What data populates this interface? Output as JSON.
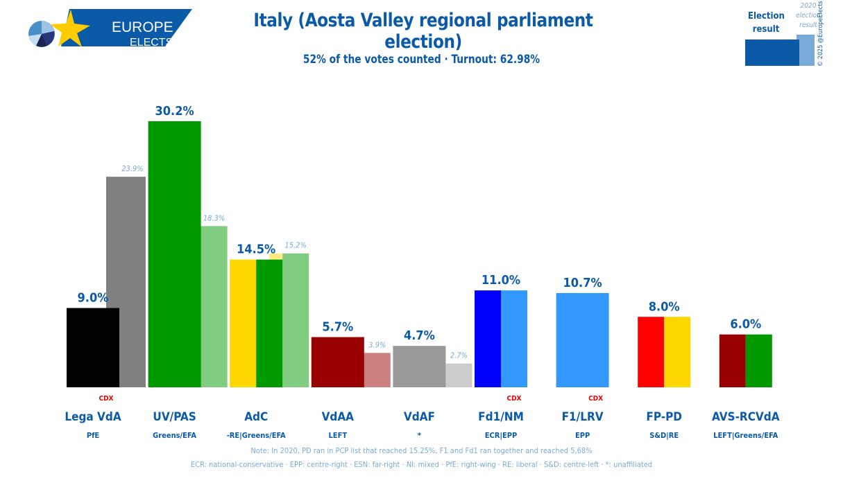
{
  "logo": {
    "line1": "EUROPE",
    "line2": "ELECTS"
  },
  "header": {
    "title": "Italy (Aosta Valley regional parliament election)",
    "subtitle": "52% of the votes counted · Turnout: 62.98%"
  },
  "legend": {
    "main_label_1": "Election",
    "main_label_2": "result",
    "prev_label_1": "2020",
    "prev_label_2": "election",
    "prev_label_3": "result",
    "copyright": "© 2025 @EuropeElects",
    "main_color": "#0a5aa8",
    "prev_color": "#7aabd8"
  },
  "notes": {
    "line1": "Note: In 2020, PD ran in PCP list that reached 15.25%, F1 and Fd1 ran together and reached 5,68%",
    "line2": "ECR: national-conservative · EPP: centre-right · ESN: far-right · NI: mixed · PfE: right-wing · RE: liberal · S&D: centre-left · *: unaffiliated"
  },
  "chart_data": {
    "type": "bar",
    "title": "Italy (Aosta Valley regional parliament election)",
    "ylim": [
      0,
      30.2
    ],
    "grid": false,
    "categories": [
      "Lega VdA",
      "UV/PAS",
      "AdC",
      "VdAA",
      "VdAF",
      "Fd1/NM",
      "F1/LRV",
      "FP-PD",
      "AVS-RCVdA"
    ],
    "series": [
      {
        "name": "Election result",
        "values": [
          9.0,
          30.2,
          14.5,
          5.7,
          4.7,
          11.0,
          10.7,
          8.0,
          6.0
        ]
      },
      {
        "name": "2020 election result",
        "values": [
          23.9,
          18.3,
          15.2,
          3.9,
          2.7,
          null,
          null,
          null,
          null
        ]
      }
    ],
    "parties": [
      {
        "name": "Lega VdA",
        "group": "PfE",
        "tag": "CDX",
        "value": 9.0,
        "value_label": "9.0%",
        "prev": 23.9,
        "prev_label": "23.9%",
        "colors": [
          "#000000"
        ],
        "prev_colors": [
          "#808080"
        ]
      },
      {
        "name": "UV/PAS",
        "group": "Greens/EFA",
        "tag": "",
        "value": 30.2,
        "value_label": "30.2%",
        "prev": 18.3,
        "prev_label": "18.3%",
        "colors": [
          "#009900"
        ],
        "prev_colors": [
          "#80cc80"
        ]
      },
      {
        "name": "AdC",
        "group": "-RE|Greens/EFA",
        "tag": "",
        "value": 14.5,
        "value_label": "14.5%",
        "prev": 15.2,
        "prev_label": "15.2%",
        "colors": [
          "#ffd700",
          "#009900"
        ],
        "prev_colors": [
          "#ffeb80",
          "#80cc80"
        ]
      },
      {
        "name": "VdAA",
        "group": "LEFT",
        "tag": "",
        "value": 5.7,
        "value_label": "5.7%",
        "prev": 3.9,
        "prev_label": "3.9%",
        "colors": [
          "#990000"
        ],
        "prev_colors": [
          "#cc8080"
        ]
      },
      {
        "name": "VdAF",
        "group": "*",
        "tag": "",
        "value": 4.7,
        "value_label": "4.7%",
        "prev": 2.7,
        "prev_label": "2.7%",
        "colors": [
          "#999999"
        ],
        "prev_colors": [
          "#cccccc"
        ]
      },
      {
        "name": "Fd1/NM",
        "group": "ECR|EPP",
        "tag": "CDX",
        "value": 11.0,
        "value_label": "11.0%",
        "prev": null,
        "prev_label": "",
        "colors": [
          "#0000ff",
          "#3399ff"
        ],
        "prev_colors": []
      },
      {
        "name": "F1/LRV",
        "group": "EPP",
        "tag": "CDX",
        "value": 10.7,
        "value_label": "10.7%",
        "prev": null,
        "prev_label": "",
        "colors": [
          "#3399ff"
        ],
        "prev_colors": []
      },
      {
        "name": "FP-PD",
        "group": "S&D|RE",
        "tag": "",
        "value": 8.0,
        "value_label": "8.0%",
        "prev": null,
        "prev_label": "",
        "colors": [
          "#ff0000",
          "#ffd700"
        ],
        "prev_colors": []
      },
      {
        "name": "AVS-RCVdA",
        "group": "LEFT|Greens/EFA",
        "tag": "",
        "value": 6.0,
        "value_label": "6.0%",
        "prev": null,
        "prev_label": "",
        "colors": [
          "#990000",
          "#009900"
        ],
        "prev_colors": []
      }
    ],
    "colors": {
      "label": "#0a5aa8",
      "prev_label": "#7aabd8",
      "tag": "#e60000"
    }
  }
}
